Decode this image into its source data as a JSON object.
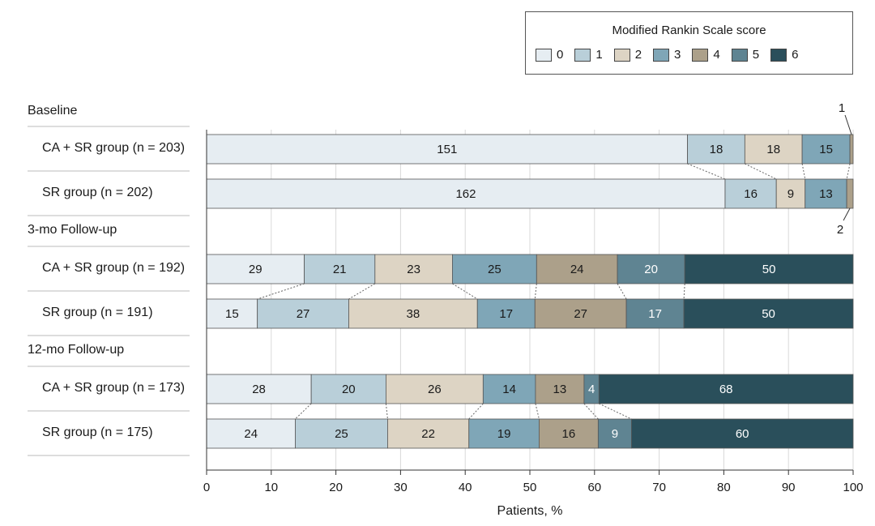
{
  "chart_data": {
    "type": "bar",
    "orientation": "horizontal",
    "stacked": true,
    "normalized_percent": true,
    "legend": {
      "title": "Modified Rankin Scale score",
      "placement": "top-right",
      "entries": [
        "0",
        "1",
        "2",
        "3",
        "4",
        "5",
        "6"
      ],
      "colors": [
        "#e6edf2",
        "#b9cfd9",
        "#ddd4c4",
        "#7fa6b7",
        "#aca08a",
        "#5f8492",
        "#2a4f5b"
      ]
    },
    "xlabel": "Patients, %",
    "xlim": [
      0,
      100
    ],
    "xticks": [
      "0",
      "10",
      "20",
      "30",
      "40",
      "50",
      "60",
      "70",
      "80",
      "90",
      "100"
    ],
    "groups": [
      {
        "title": "Baseline",
        "rows": [
          {
            "label": "CA + SR group (n = 203)",
            "values": [
              151,
              18,
              18,
              15,
              1,
              0,
              0
            ],
            "value_labels": [
              "151",
              "18",
              "18",
              "15",
              "",
              "",
              ""
            ]
          },
          {
            "label": "SR group (n = 202)",
            "values": [
              162,
              16,
              9,
              13,
              2,
              0,
              0
            ],
            "value_labels": [
              "162",
              "16",
              "9",
              "13",
              "",
              "",
              ""
            ]
          }
        ]
      },
      {
        "title": "3-mo Follow-up",
        "rows": [
          {
            "label": "CA + SR group (n = 192)",
            "values": [
              29,
              21,
              23,
              25,
              24,
              20,
              50
            ],
            "value_labels": [
              "29",
              "21",
              "23",
              "25",
              "24",
              "20",
              "50"
            ]
          },
          {
            "label": "SR group (n = 191)",
            "values": [
              15,
              27,
              38,
              17,
              27,
              17,
              50
            ],
            "value_labels": [
              "15",
              "27",
              "38",
              "17",
              "27",
              "17",
              "50"
            ]
          }
        ]
      },
      {
        "title": "12-mo Follow-up",
        "rows": [
          {
            "label": "CA + SR group (n = 173)",
            "values": [
              28,
              20,
              26,
              14,
              13,
              4,
              68
            ],
            "value_labels": [
              "28",
              "20",
              "26",
              "14",
              "13",
              "4",
              "68"
            ]
          },
          {
            "label": "SR group (n = 175)",
            "values": [
              24,
              25,
              22,
              19,
              16,
              9,
              60
            ],
            "value_labels": [
              "24",
              "25",
              "22",
              "19",
              "16",
              "9",
              "60"
            ]
          }
        ]
      }
    ],
    "annotations": [
      {
        "text": "1",
        "group": 0,
        "row": 0,
        "segment": 4
      },
      {
        "text": "2",
        "group": 0,
        "row": 1,
        "segment": 4
      }
    ]
  }
}
